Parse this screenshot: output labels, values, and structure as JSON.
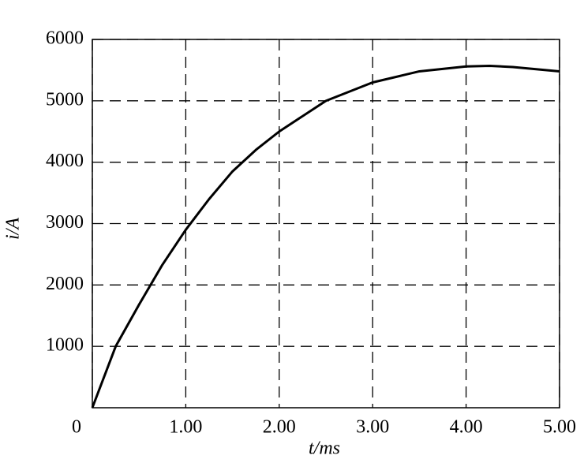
{
  "chart_data": {
    "type": "line",
    "x_label": "t/ms",
    "y_label": "i/A",
    "x": [
      0,
      0.25,
      0.5,
      0.75,
      1,
      1.25,
      1.5,
      1.75,
      2,
      2.5,
      3,
      3.5,
      4,
      4.25,
      4.5,
      5
    ],
    "series": [
      {
        "color": "#000000",
        "values": [
          0,
          1000,
          1680,
          2330,
          2900,
          3400,
          3850,
          4200,
          4500,
          5000,
          5300,
          5480,
          5560,
          5570,
          5550,
          5480
        ]
      }
    ],
    "xlim": [
      0,
      5
    ],
    "ylim": [
      0,
      6000
    ],
    "xticks": [
      0,
      {
        "value": 1,
        "label": "1.00"
      },
      {
        "value": 2,
        "label": "2.00"
      },
      {
        "value": 3,
        "label": "3.00"
      },
      {
        "value": 4,
        "label": "4.00"
      },
      {
        "value": 5,
        "label": "5.00"
      }
    ],
    "yticks": [
      1000,
      2000,
      3000,
      4000,
      5000,
      6000
    ],
    "grid": true
  }
}
